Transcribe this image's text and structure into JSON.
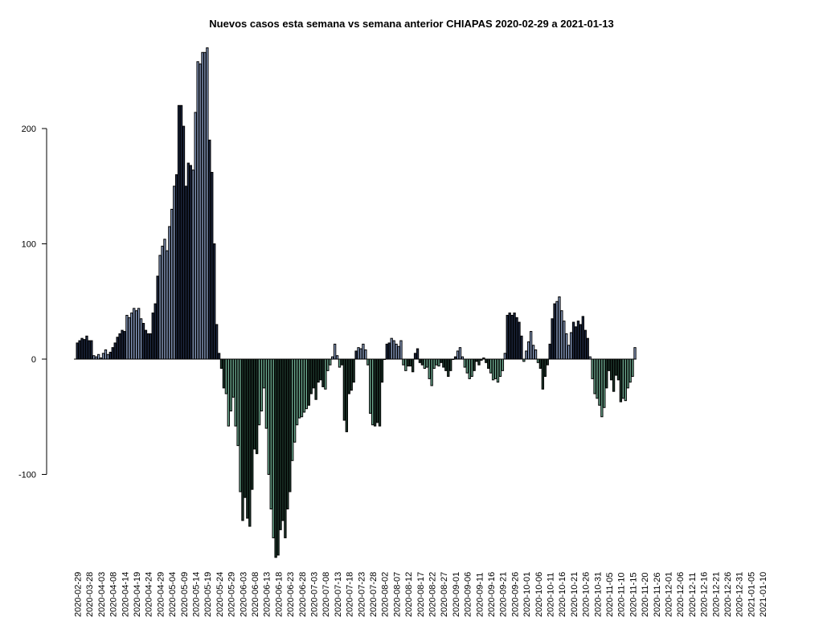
{
  "chart_data": {
    "type": "bar",
    "title": "Nuevos casos esta semana vs semana anterior CHIAPAS 2020-02-29 a 2021-01-13",
    "xlabel": "",
    "ylabel": "",
    "ylim": [
      -172,
      272
    ],
    "yticks": [
      -100,
      0,
      100,
      200
    ],
    "start_date": "2020-02-29",
    "end_date": "2021-01-13",
    "x_tick_labels": [
      "2020-02-29",
      "2020-03-28",
      "2020-04-03",
      "2020-04-08",
      "2020-04-14",
      "2020-04-19",
      "2020-04-24",
      "2020-04-29",
      "2020-05-04",
      "2020-05-09",
      "2020-05-14",
      "2020-05-19",
      "2020-05-24",
      "2020-05-29",
      "2020-06-03",
      "2020-06-08",
      "2020-06-13",
      "2020-06-18",
      "2020-06-23",
      "2020-06-28",
      "2020-07-03",
      "2020-07-08",
      "2020-07-13",
      "2020-07-18",
      "2020-07-23",
      "2020-07-28",
      "2020-08-02",
      "2020-08-07",
      "2020-08-12",
      "2020-08-17",
      "2020-08-22",
      "2020-08-27",
      "2020-09-01",
      "2020-09-06",
      "2020-09-11",
      "2020-09-16",
      "2020-09-21",
      "2020-09-26",
      "2020-10-01",
      "2020-10-06",
      "2020-10-11",
      "2020-10-16",
      "2020-10-21",
      "2020-10-26",
      "2020-10-31",
      "2020-11-05",
      "2020-11-10",
      "2020-11-15",
      "2020-11-20",
      "2020-11-26",
      "2020-12-01",
      "2020-12-06",
      "2020-12-11",
      "2020-12-16",
      "2020-12-21",
      "2020-12-26",
      "2020-12-31",
      "2021-01-05",
      "2021-01-10"
    ],
    "colors": {
      "positive_week_odd": "#8ea2c8",
      "positive_week_even": "#1f2a44",
      "negative_week_odd": "#6fae93",
      "negative_week_even": "#1f3a2e"
    },
    "values": [
      14,
      16,
      18,
      17,
      20,
      16,
      16,
      3,
      2,
      4,
      1,
      5,
      8,
      4,
      6,
      10,
      14,
      19,
      22,
      25,
      24,
      38,
      36,
      40,
      44,
      42,
      44,
      35,
      31,
      25,
      22,
      22,
      40,
      48,
      72,
      90,
      98,
      104,
      94,
      115,
      130,
      150,
      160,
      220,
      220,
      202,
      150,
      170,
      168,
      164,
      214,
      258,
      256,
      266,
      266,
      270,
      190,
      162,
      100,
      30,
      5,
      -8,
      -25,
      -30,
      -58,
      -45,
      -33,
      -58,
      -75,
      -115,
      -140,
      -120,
      -138,
      -145,
      -113,
      -78,
      -82,
      -57,
      -45,
      -25,
      -60,
      -100,
      -130,
      -155,
      -172,
      -170,
      -148,
      -140,
      -155,
      -130,
      -115,
      -88,
      -72,
      -57,
      -51,
      -50,
      -46,
      -43,
      -40,
      -30,
      -25,
      -35,
      -20,
      -18,
      -24,
      -26,
      -10,
      -5,
      2,
      13,
      3,
      -7,
      -5,
      -53,
      -63,
      -30,
      -27,
      -20,
      7,
      10,
      9,
      13,
      8,
      -5,
      -47,
      -57,
      -58,
      -55,
      -58,
      -20,
      0,
      13,
      14,
      18,
      16,
      13,
      11,
      16,
      -5,
      -10,
      -6,
      -6,
      -11,
      5,
      9,
      -3,
      -5,
      -8,
      -7,
      -17,
      -23,
      -8,
      -5,
      -6,
      -3,
      -7,
      -10,
      -15,
      -10,
      0,
      2,
      7,
      10,
      2,
      -7,
      -12,
      -17,
      -15,
      -10,
      -2,
      -5,
      -1,
      1,
      -3,
      -8,
      -12,
      -18,
      -17,
      -20,
      -15,
      -10,
      5,
      38,
      40,
      38,
      40,
      36,
      32,
      20,
      -2,
      7,
      15,
      24,
      12,
      8,
      -3,
      -8,
      -26,
      -15,
      -5,
      13,
      35,
      48,
      50,
      54,
      42,
      33,
      22,
      12,
      23,
      32,
      28,
      33,
      30,
      37,
      25,
      18,
      2,
      -17,
      -30,
      -34,
      -40,
      -50,
      -42,
      -25,
      -10,
      -18,
      -28,
      -14,
      -18,
      -37,
      -34,
      -36,
      -25,
      -20,
      -15,
      10
    ]
  }
}
